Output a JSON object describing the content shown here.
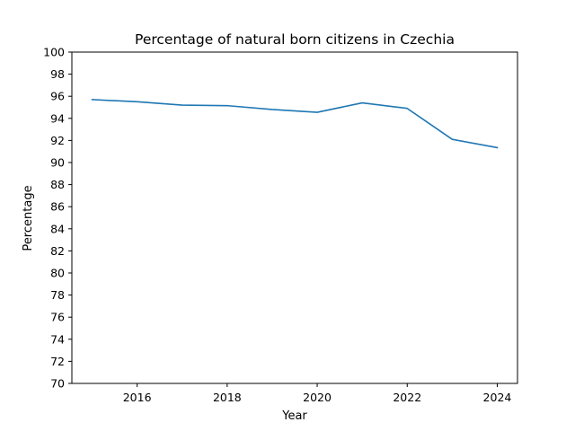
{
  "chart_data": {
    "type": "line",
    "title": "Percentage of natural born citizens in Czechia",
    "xlabel": "Year",
    "ylabel": "Percentage",
    "xlim": [
      2014.55,
      2024.45
    ],
    "ylim": [
      70,
      100
    ],
    "xticks": [
      2016,
      2018,
      2020,
      2022,
      2024
    ],
    "yticks": [
      70,
      72,
      74,
      76,
      78,
      80,
      82,
      84,
      86,
      88,
      90,
      92,
      94,
      96,
      98,
      100
    ],
    "grid": false,
    "series": [
      {
        "color": "#1f77b4",
        "x": [
          2015,
          2016,
          2017,
          2018,
          2019,
          2020,
          2021,
          2022,
          2023,
          2024
        ],
        "y": [
          95.7,
          95.5,
          95.2,
          95.15,
          94.8,
          94.55,
          95.4,
          94.9,
          92.1,
          91.35
        ]
      }
    ]
  }
}
